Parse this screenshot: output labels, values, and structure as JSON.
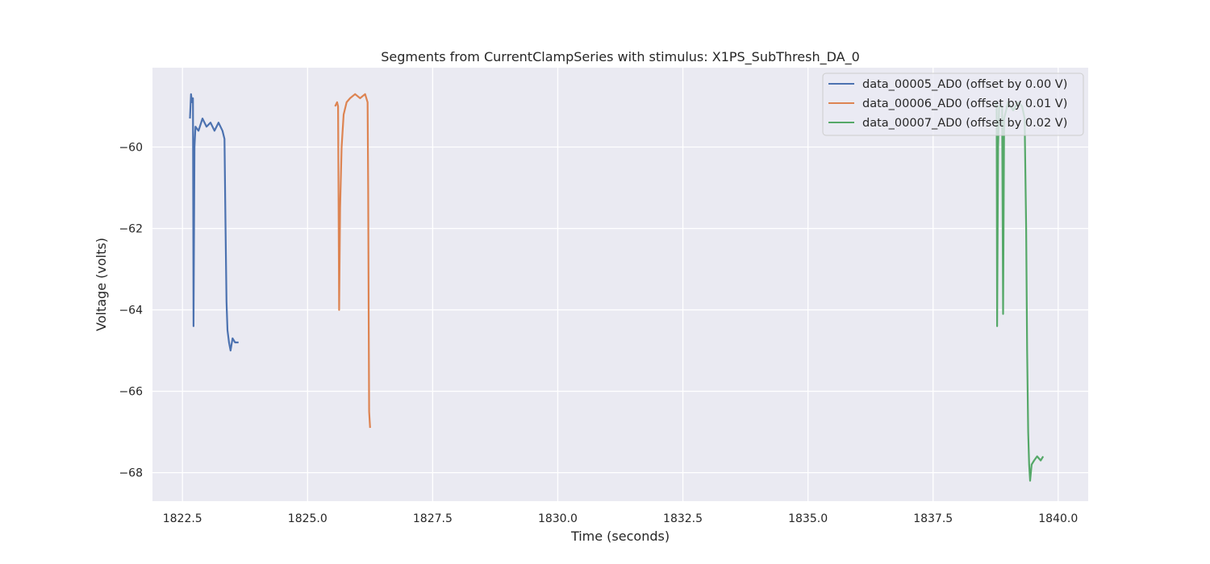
{
  "chart_data": {
    "type": "line",
    "title": "Segments from CurrentClampSeries with stimulus: X1PS_SubThresh_DA_0",
    "xlabel": "Time (seconds)",
    "ylabel": "Voltage (volts)",
    "xlim": [
      1821.9,
      1840.6
    ],
    "ylim": [
      -68.7,
      -58.05
    ],
    "xticks": [
      1822.5,
      1825.0,
      1827.5,
      1830.0,
      1832.5,
      1835.0,
      1837.5,
      1840.0
    ],
    "xtick_labels": [
      "1822.5",
      "1825.0",
      "1827.5",
      "1830.0",
      "1832.5",
      "1835.0",
      "1837.5",
      "1840.0"
    ],
    "yticks": [
      -68,
      -66,
      -64,
      -62,
      -60
    ],
    "ytick_labels": [
      "−68",
      "−66",
      "−64",
      "−62",
      "−60"
    ],
    "grid": true,
    "legend_position": "top-right",
    "series": [
      {
        "name": "data_00005_AD0 (offset by 0.00 V)",
        "color": "#4c72b0",
        "points": [
          [
            1822.65,
            -59.3
          ],
          [
            1822.67,
            -58.7
          ],
          [
            1822.69,
            -58.9
          ],
          [
            1822.71,
            -58.8
          ],
          [
            1822.72,
            -64.4
          ],
          [
            1822.74,
            -60.0
          ],
          [
            1822.76,
            -59.5
          ],
          [
            1822.82,
            -59.6
          ],
          [
            1822.9,
            -59.3
          ],
          [
            1822.98,
            -59.5
          ],
          [
            1823.06,
            -59.4
          ],
          [
            1823.14,
            -59.6
          ],
          [
            1823.22,
            -59.4
          ],
          [
            1823.3,
            -59.6
          ],
          [
            1823.34,
            -59.8
          ],
          [
            1823.36,
            -62.0
          ],
          [
            1823.38,
            -63.8
          ],
          [
            1823.4,
            -64.5
          ],
          [
            1823.43,
            -64.8
          ],
          [
            1823.46,
            -65.0
          ],
          [
            1823.5,
            -64.7
          ],
          [
            1823.55,
            -64.8
          ],
          [
            1823.62,
            -64.8
          ]
        ]
      },
      {
        "name": "data_00006_AD0 (offset by 0.01 V)",
        "color": "#dd8452",
        "points": [
          [
            1825.55,
            -59.0
          ],
          [
            1825.59,
            -58.9
          ],
          [
            1825.61,
            -59.0
          ],
          [
            1825.63,
            -64.0
          ],
          [
            1825.65,
            -61.5
          ],
          [
            1825.68,
            -60.0
          ],
          [
            1825.72,
            -59.2
          ],
          [
            1825.78,
            -58.9
          ],
          [
            1825.85,
            -58.8
          ],
          [
            1825.95,
            -58.7
          ],
          [
            1826.05,
            -58.8
          ],
          [
            1826.15,
            -58.7
          ],
          [
            1826.2,
            -58.9
          ],
          [
            1826.21,
            -61.0
          ],
          [
            1826.22,
            -64.0
          ],
          [
            1826.23,
            -66.5
          ],
          [
            1826.25,
            -66.9
          ]
        ]
      },
      {
        "name": "data_00007_AD0 (offset by 0.02 V)",
        "color": "#55a868",
        "points": [
          [
            1838.75,
            -59.0
          ],
          [
            1838.77,
            -58.9
          ],
          [
            1838.78,
            -64.4
          ],
          [
            1838.8,
            -60.0
          ],
          [
            1838.82,
            -59.0
          ],
          [
            1838.88,
            -59.0
          ],
          [
            1838.9,
            -64.1
          ],
          [
            1838.92,
            -59.3
          ],
          [
            1839.0,
            -58.9
          ],
          [
            1839.1,
            -59.1
          ],
          [
            1839.2,
            -58.9
          ],
          [
            1839.28,
            -59.0
          ],
          [
            1839.33,
            -59.3
          ],
          [
            1839.36,
            -62.0
          ],
          [
            1839.38,
            -65.0
          ],
          [
            1839.4,
            -67.0
          ],
          [
            1839.42,
            -67.8
          ],
          [
            1839.44,
            -68.2
          ],
          [
            1839.47,
            -67.8
          ],
          [
            1839.52,
            -67.7
          ],
          [
            1839.58,
            -67.6
          ],
          [
            1839.65,
            -67.7
          ],
          [
            1839.7,
            -67.6
          ]
        ]
      }
    ]
  }
}
